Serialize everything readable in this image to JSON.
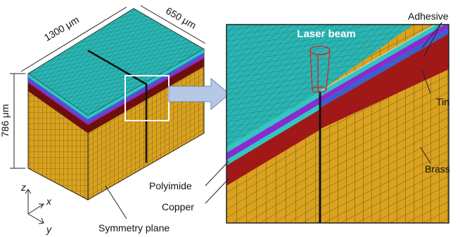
{
  "dimensions": {
    "length": "1300 μm",
    "width": "650 μm",
    "height": "786 μm"
  },
  "labels": {
    "laser_beam": "Laser beam",
    "adhesive": "Adhesive",
    "tin": "Tin",
    "brass": "Brass",
    "polyimide": "Polyimide",
    "copper": "Copper",
    "symmetry_plane": "Symmetry plane"
  },
  "axes": {
    "z": "z",
    "x": "x",
    "y": "y"
  }
}
